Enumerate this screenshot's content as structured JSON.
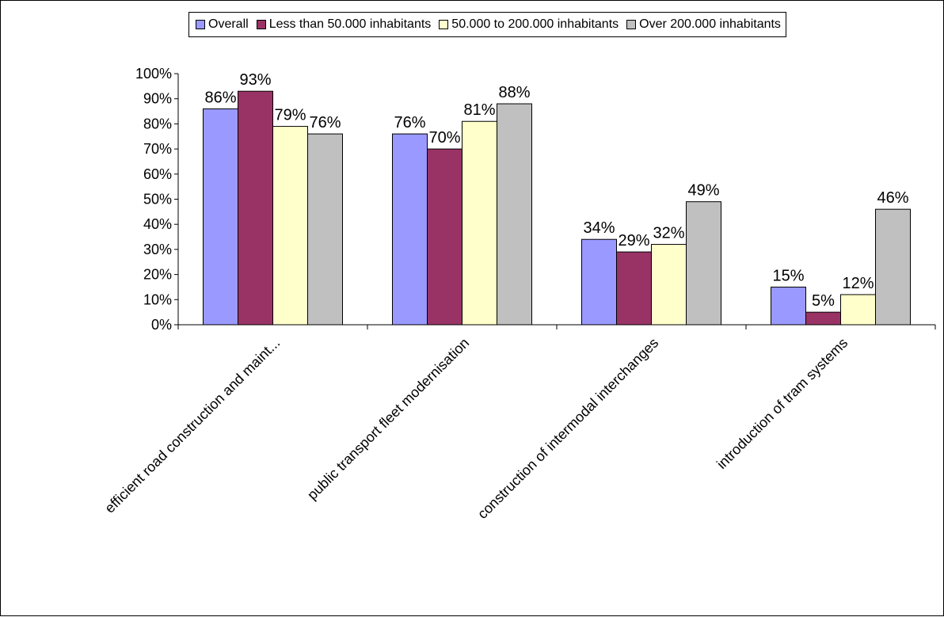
{
  "chart_data": {
    "type": "bar",
    "categories": [
      "efficient road construction and maint...",
      "public transport fleet modernisation",
      "construction of intermodal interchanges",
      "introduction of tram systems"
    ],
    "series": [
      {
        "name": "Overall",
        "color": "#9999ff",
        "values": [
          86,
          76,
          34,
          15
        ],
        "labels": [
          "86%",
          "76%",
          "34%",
          "15%"
        ]
      },
      {
        "name": "Less than 50.000 inhabitants",
        "color": "#993366",
        "values": [
          93,
          70,
          29,
          5
        ],
        "labels": [
          "93%",
          "70%",
          "29%",
          "5%"
        ]
      },
      {
        "name": "50.000 to 200.000 inhabitants",
        "color": "#ffffcc",
        "values": [
          79,
          81,
          32,
          12
        ],
        "labels": [
          "79%",
          "81%",
          "32%",
          "12%"
        ]
      },
      {
        "name": "Over 200.000 inhabitants",
        "color": "#c0c0c0",
        "values": [
          76,
          88,
          49,
          46
        ],
        "labels": [
          "76%",
          "88%",
          "49%",
          "46%"
        ]
      }
    ],
    "yticks": [
      "0%",
      "10%",
      "20%",
      "30%",
      "40%",
      "50%",
      "60%",
      "70%",
      "80%",
      "90%",
      "100%"
    ],
    "ylim": [
      0,
      100
    ],
    "legend_position": "top",
    "grid": false
  }
}
